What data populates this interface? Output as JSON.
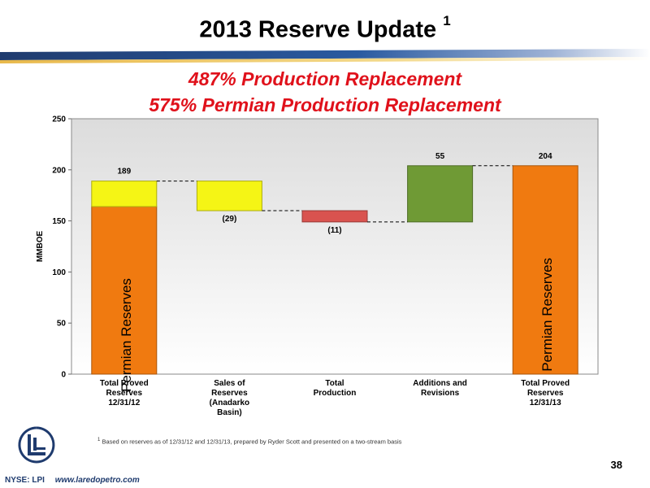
{
  "slide": {
    "title": "2013 Reserve Update",
    "title_footnote_mark": "1",
    "subtitle_1": "487% Production Replacement",
    "subtitle_2": "575% Permian Production Replacement",
    "footnote_mark": "1",
    "footnote": "Based on reserves as of 12/31/12 and 12/31/13, prepared by Ryder Scott and presented on a two-stream basis",
    "page_number": "38",
    "ticker": "NYSE: LPI",
    "website": "www.laredopetro.com"
  },
  "colors": {
    "band_blue": "#1f3b6e",
    "band_gold": "#e8b84a",
    "subtitle_red": "#e0111b",
    "orange": "#f07a10",
    "yellow": "#f5f515",
    "red": "#d9534f",
    "green": "#6f9a35"
  },
  "chart_data": {
    "type": "waterfall",
    "ylabel": "MMBOE",
    "ylim": [
      0,
      250
    ],
    "yticks": [
      0,
      50,
      100,
      150,
      200,
      250
    ],
    "grid": false,
    "categories": [
      [
        "Total Proved",
        "Reserves",
        "12/31/12"
      ],
      [
        "Sales of",
        "Reserves",
        "(Anadarko",
        "Basin)"
      ],
      [
        "Total",
        "Production"
      ],
      [
        "Additions and",
        "Revisions"
      ],
      [
        "Total Proved",
        "Reserves",
        "12/31/13"
      ]
    ],
    "bars": [
      {
        "segments": [
          {
            "from": 0,
            "to": 164,
            "color": "orange",
            "label": "Permian Reserves"
          },
          {
            "from": 164,
            "to": 189,
            "color": "yellow"
          }
        ],
        "data_label": "189",
        "value": 189
      },
      {
        "segments": [
          {
            "from": 160,
            "to": 189,
            "color": "yellow"
          }
        ],
        "data_label": "(29)",
        "value": -29
      },
      {
        "segments": [
          {
            "from": 149,
            "to": 160,
            "color": "red"
          }
        ],
        "data_label": "(11)",
        "value": -11
      },
      {
        "segments": [
          {
            "from": 149,
            "to": 204,
            "color": "green"
          }
        ],
        "data_label": "55",
        "value": 55
      },
      {
        "segments": [
          {
            "from": 0,
            "to": 204,
            "color": "orange",
            "label": "Permian Reserves"
          }
        ],
        "data_label": "204",
        "value": 204
      }
    ]
  }
}
